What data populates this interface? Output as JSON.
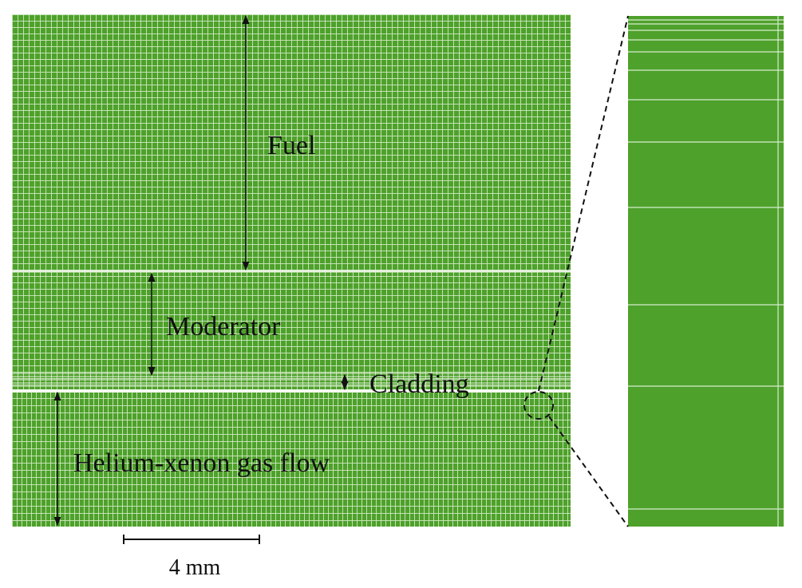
{
  "labels": {
    "fuel": "Fuel",
    "moderator": "Moderator",
    "cladding": "Cladding",
    "gas_flow": "Helium-xenon gas flow"
  },
  "scale_bar": {
    "label": "4 mm"
  }
}
